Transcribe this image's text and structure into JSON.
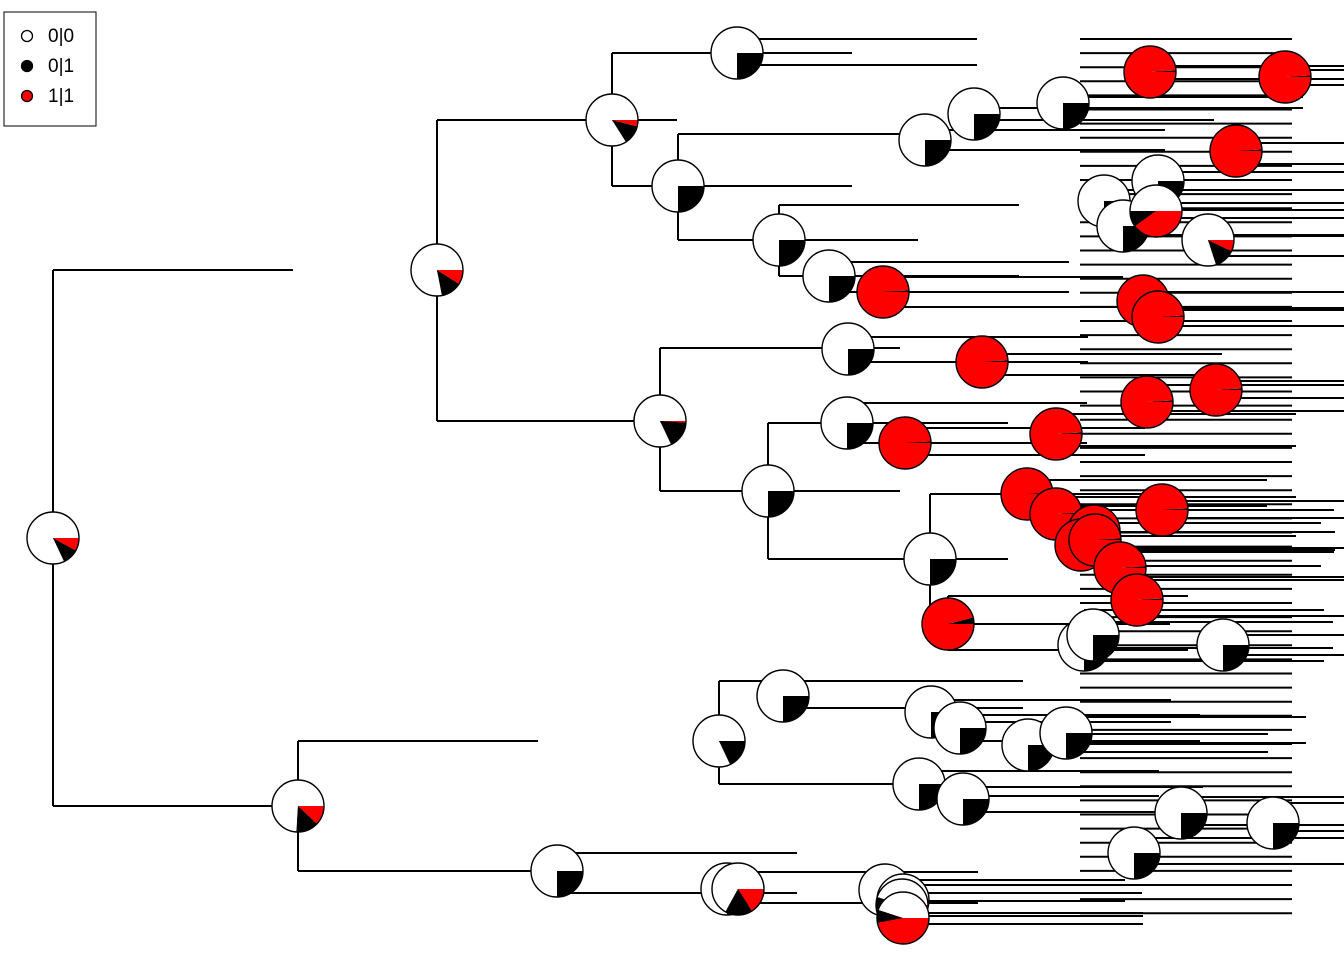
{
  "legend": {
    "items": [
      {
        "label": "0|0",
        "color": "#ffffff"
      },
      {
        "label": "0|1",
        "color": "#000000"
      },
      {
        "label": "1|1",
        "color": "#ff0000"
      }
    ]
  },
  "colors": {
    "line": "#000000",
    "state_00": "#ffffff",
    "state_01": "#000000",
    "state_11": "#ff0000"
  },
  "node_states": [
    [
      0.82,
      0.1,
      0.08
    ],
    [
      0.78,
      0.13,
      0.09
    ],
    [
      0.74,
      0.14,
      0.12
    ],
    [
      0.84,
      0.12,
      0.04
    ],
    [
      0.82,
      0.17,
      0.01
    ],
    [
      0.82,
      0.18,
      0.0
    ],
    [
      0.75,
      0.25,
      0.0
    ],
    [
      0.75,
      0.25,
      0.0
    ],
    [
      0.75,
      0.25,
      0.0
    ],
    [
      0.75,
      0.25,
      0.0
    ],
    [
      0.75,
      0.25,
      0.0
    ],
    [
      0.75,
      0.25,
      0.0
    ],
    [
      0.75,
      0.25,
      0.0
    ],
    [
      0.75,
      0.25,
      0.0
    ],
    [
      0.75,
      0.25,
      0.0
    ],
    [
      0.75,
      0.25,
      0.0
    ],
    [
      0.75,
      0.25,
      0.0
    ],
    [
      0.75,
      0.25,
      0.0
    ],
    [
      0.75,
      0.25,
      0.0
    ],
    [
      0.75,
      0.25,
      0.0
    ],
    [
      0.75,
      0.25,
      0.0
    ],
    [
      0.5,
      0.1,
      0.4
    ],
    [
      0.8,
      0.13,
      0.07
    ],
    [
      0.75,
      0.25,
      0.0
    ],
    [
      0.0,
      0.01,
      0.99
    ],
    [
      0.0,
      0.01,
      0.99
    ],
    [
      0.0,
      0.01,
      0.99
    ],
    [
      0.0,
      0.01,
      0.99
    ],
    [
      0.0,
      0.01,
      0.99
    ],
    [
      0.0,
      0.01,
      0.99
    ],
    [
      0.0,
      0.01,
      0.99
    ],
    [
      0.0,
      0.01,
      0.99
    ],
    [
      0.0,
      0.01,
      0.99
    ],
    [
      0.0,
      0.01,
      0.99
    ],
    [
      0.0,
      0.01,
      0.99
    ],
    [
      0.0,
      0.01,
      0.99
    ],
    [
      0.0,
      0.01,
      0.99
    ],
    [
      0.0,
      0.01,
      0.99
    ],
    [
      0.0,
      0.01,
      0.99
    ],
    [
      0.0,
      0.01,
      0.99
    ],
    [
      0.0,
      0.01,
      0.99
    ],
    [
      0.0,
      0.01,
      0.99
    ],
    [
      0.0,
      0.01,
      0.99
    ],
    [
      0.0,
      0.04,
      0.96
    ],
    [
      0.75,
      0.25,
      0.0
    ],
    [
      0.75,
      0.25,
      0.0
    ],
    [
      0.75,
      0.25,
      0.0
    ],
    [
      0.75,
      0.25,
      0.0
    ],
    [
      0.75,
      0.25,
      0.0
    ],
    [
      0.75,
      0.25,
      0.0
    ],
    [
      0.75,
      0.25,
      0.0
    ],
    [
      0.75,
      0.25,
      0.0
    ],
    [
      0.75,
      0.25,
      0.0
    ],
    [
      0.75,
      0.25,
      0.0
    ],
    [
      0.75,
      0.25,
      0.0
    ],
    [
      0.75,
      0.25,
      0.0
    ],
    [
      0.75,
      0.25,
      0.0
    ],
    [
      0.72,
      0.1,
      0.18
    ],
    [
      0.75,
      0.25,
      0.0
    ],
    [
      0.67,
      0.17,
      0.16
    ],
    [
      0.45,
      0.08,
      0.47
    ],
    [
      0.45,
      0.08,
      0.47
    ]
  ]
}
